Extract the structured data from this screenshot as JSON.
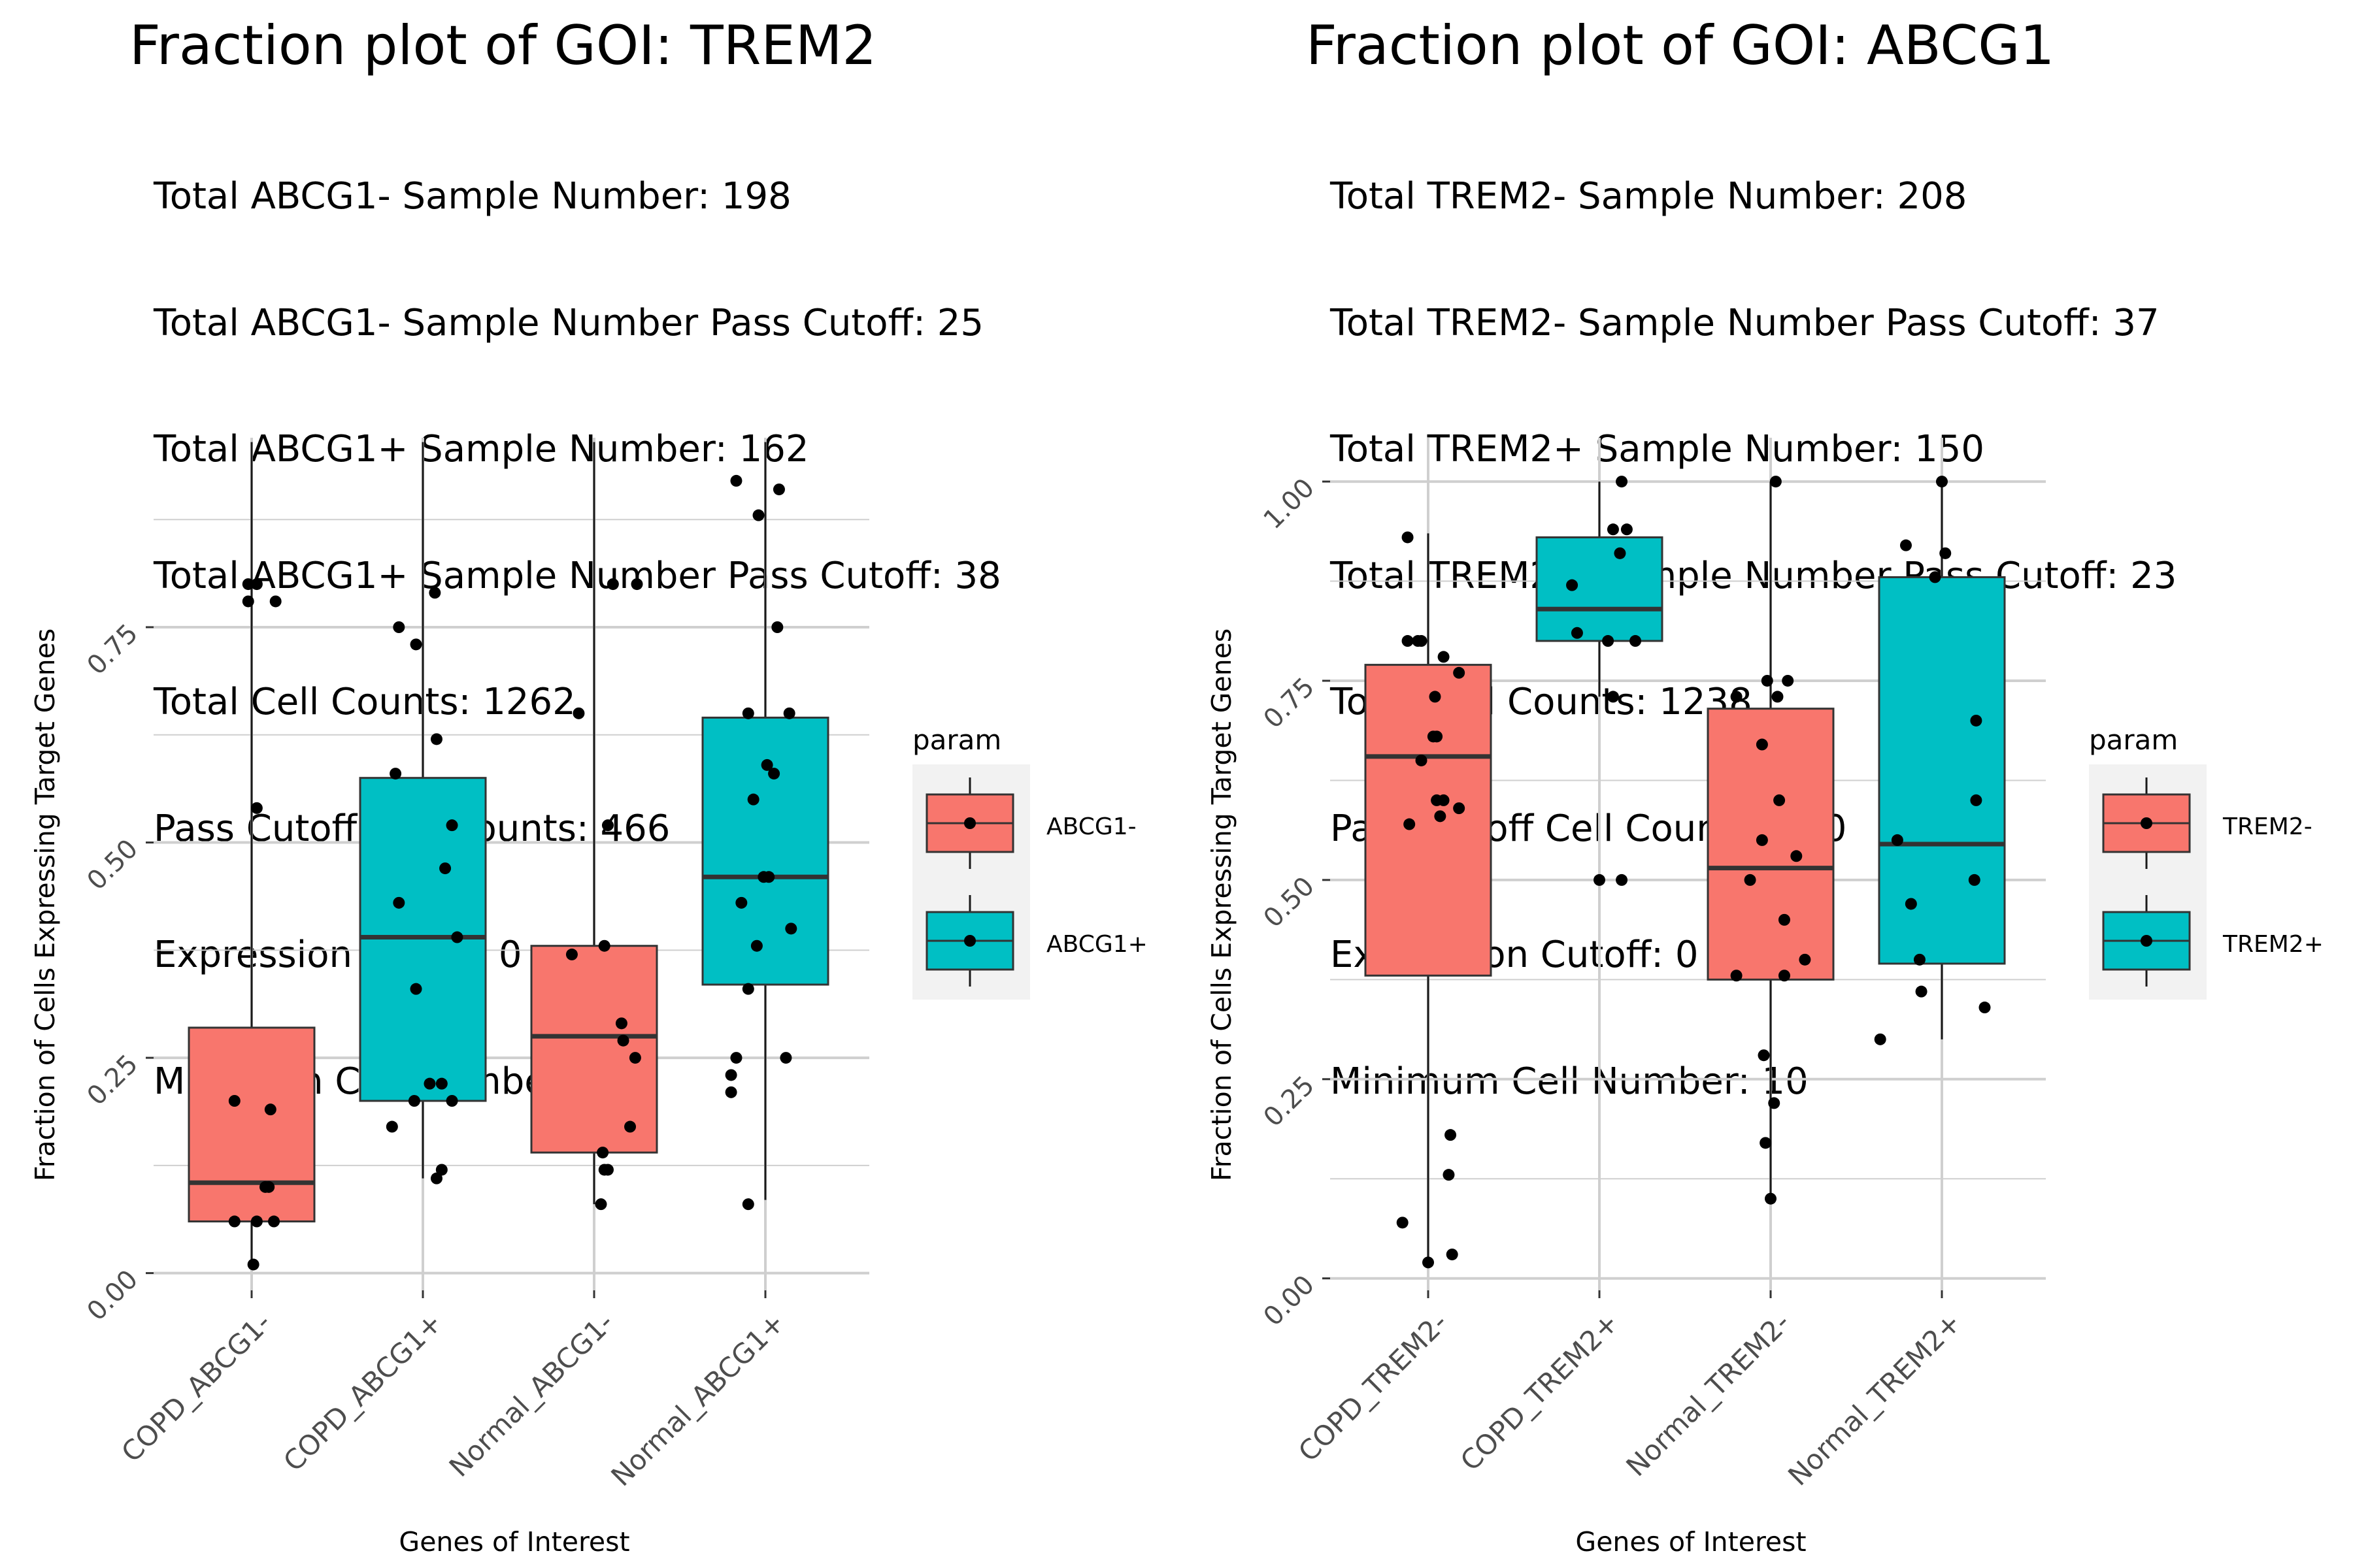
{
  "panels": [
    {
      "title": "Fraction plot of GOI: TREM2",
      "subtitle_lines": [
        "Total ABCG1- Sample Number: 198",
        "Total ABCG1- Sample Number Pass Cutoff: 25",
        "Total ABCG1+ Sample Number: 162",
        "Total ABCG1+ Sample Number Pass Cutoff: 38",
        "Total Cell Counts: 1262",
        "Pass Cutoff Cell Counts: 466",
        "Expression Cutoff: 0",
        "Minimum Cell Number: 10"
      ],
      "legend": {
        "title": "param",
        "entries": [
          "ABCG1-",
          "ABCG1+"
        ]
      }
    },
    {
      "title": "Fraction plot of GOI: ABCG1",
      "subtitle_lines": [
        "Total TREM2- Sample Number: 208",
        "Total TREM2- Sample Number Pass Cutoff: 37",
        "Total TREM2+ Sample Number: 150",
        "Total TREM2+ Sample Number Pass Cutoff: 23",
        "Total Cell Counts: 1238",
        "Pass Cutoff Cell Counts: 710",
        "Expression Cutoff: 0",
        "Minimum Cell Number: 10"
      ],
      "legend": {
        "title": "param",
        "entries": [
          "TREM2-",
          "TREM2+"
        ]
      }
    }
  ],
  "colors": {
    "negative": "#F8766D",
    "positive": "#00BFC4",
    "panel_bg": "#ffffff",
    "grid": "#cfcfcf",
    "legend_bg": "#F2F2F2"
  },
  "chart_data": [
    {
      "type": "box",
      "title": "Fraction plot of GOI: TREM2",
      "xlabel": "Genes of Interest",
      "ylabel": "Fraction of Cells Expressing Target Genes",
      "ylim": [
        -0.02,
        0.97
      ],
      "yticks": [
        0.0,
        0.25,
        0.5,
        0.75
      ],
      "ytick_labels": [
        "0.00",
        "0.25",
        "0.50",
        "0.75"
      ],
      "legend_title": "param",
      "grid": true,
      "legend_position": "right",
      "categories": [
        "COPD_ABCG1-",
        "COPD_ABCG1+",
        "Normal_ABCG1-",
        "Normal_ABCG1+"
      ],
      "series_group": [
        "ABCG1-",
        "ABCG1+",
        "ABCG1-",
        "ABCG1+"
      ],
      "boxes": [
        {
          "lower_whisker": 0.01,
          "q1": 0.06,
          "median": 0.105,
          "q3": 0.285,
          "upper_whisker": 0.965
        },
        {
          "lower_whisker": 0.11,
          "q1": 0.2,
          "median": 0.39,
          "q3": 0.575,
          "upper_whisker": 0.965
        },
        {
          "lower_whisker": 0.08,
          "q1": 0.14,
          "median": 0.275,
          "q3": 0.38,
          "upper_whisker": 0.965
        },
        {
          "lower_whisker": 0.085,
          "q1": 0.335,
          "median": 0.46,
          "q3": 0.645,
          "upper_whisker": 0.965
        }
      ],
      "points": [
        [
          [
            -0.02,
            0.8
          ],
          [
            0.03,
            0.8
          ],
          [
            -0.02,
            0.78
          ],
          [
            0.14,
            0.78
          ],
          [
            0.03,
            0.54
          ],
          [
            -0.1,
            0.2
          ],
          [
            0.11,
            0.19
          ],
          [
            0.08,
            0.1
          ],
          [
            0.1,
            0.1
          ],
          [
            -0.1,
            0.06
          ],
          [
            0.03,
            0.06
          ],
          [
            0.13,
            0.06
          ],
          [
            0.01,
            0.01
          ]
        ],
        [
          [
            0.07,
            0.79
          ],
          [
            -0.14,
            0.75
          ],
          [
            -0.04,
            0.73
          ],
          [
            0.08,
            0.62
          ],
          [
            -0.16,
            0.58
          ],
          [
            0.17,
            0.52
          ],
          [
            -0.14,
            0.43
          ],
          [
            0.13,
            0.47
          ],
          [
            0.2,
            0.39
          ],
          [
            -0.04,
            0.33
          ],
          [
            0.04,
            0.22
          ],
          [
            0.11,
            0.22
          ],
          [
            -0.05,
            0.2
          ],
          [
            0.17,
            0.2
          ],
          [
            -0.18,
            0.17
          ],
          [
            0.08,
            0.11
          ],
          [
            0.11,
            0.12
          ]
        ],
        [
          [
            0.11,
            0.8
          ],
          [
            0.25,
            0.8
          ],
          [
            -0.09,
            0.65
          ],
          [
            0.08,
            0.52
          ],
          [
            -0.13,
            0.37
          ],
          [
            0.06,
            0.38
          ],
          [
            0.16,
            0.29
          ],
          [
            0.17,
            0.27
          ],
          [
            0.24,
            0.25
          ],
          [
            0.21,
            0.17
          ],
          [
            0.05,
            0.14
          ],
          [
            0.06,
            0.12
          ],
          [
            0.08,
            0.12
          ],
          [
            0.04,
            0.08
          ]
        ],
        [
          [
            -0.17,
            0.92
          ],
          [
            0.08,
            0.91
          ],
          [
            -0.04,
            0.88
          ],
          [
            0.07,
            0.75
          ],
          [
            -0.1,
            0.65
          ],
          [
            0.14,
            0.65
          ],
          [
            0.01,
            0.59
          ],
          [
            0.05,
            0.58
          ],
          [
            -0.07,
            0.55
          ],
          [
            -0.14,
            0.43
          ],
          [
            -0.01,
            0.46
          ],
          [
            0.02,
            0.46
          ],
          [
            0.15,
            0.4
          ],
          [
            -0.05,
            0.38
          ],
          [
            -0.1,
            0.33
          ],
          [
            0.12,
            0.25
          ],
          [
            -0.17,
            0.25
          ],
          [
            -0.2,
            0.23
          ],
          [
            -0.2,
            0.21
          ],
          [
            -0.1,
            0.08
          ]
        ]
      ]
    },
    {
      "type": "box",
      "title": "Fraction plot of GOI: ABCG1",
      "xlabel": "Genes of Interest",
      "ylabel": "Fraction of Cells Expressing Target Genes",
      "ylim": [
        -0.015,
        1.055
      ],
      "yticks": [
        0.0,
        0.25,
        0.5,
        0.75,
        1.0
      ],
      "ytick_labels": [
        "0.00",
        "0.25",
        "0.50",
        "0.75",
        "1.00"
      ],
      "legend_title": "param",
      "grid": true,
      "legend_position": "right",
      "categories": [
        "COPD_TREM2-",
        "COPD_TREM2+",
        "Normal_TREM2-",
        "Normal_TREM2+"
      ],
      "series_group": [
        "TREM2-",
        "TREM2+",
        "TREM2-",
        "TREM2+"
      ],
      "boxes": [
        {
          "lower_whisker": 0.02,
          "q1": 0.38,
          "median": 0.655,
          "q3": 0.77,
          "upper_whisker": 0.935
        },
        {
          "lower_whisker": 0.73,
          "q1": 0.8,
          "median": 0.84,
          "q3": 0.93,
          "upper_whisker": 1.0
        },
        {
          "lower_whisker": 0.1,
          "q1": 0.375,
          "median": 0.515,
          "q3": 0.715,
          "upper_whisker": 1.0
        },
        {
          "lower_whisker": 0.3,
          "q1": 0.395,
          "median": 0.545,
          "q3": 0.88,
          "upper_whisker": 1.0
        }
      ],
      "points": [
        [
          [
            -0.12,
            0.93
          ],
          [
            -0.12,
            0.8
          ],
          [
            -0.06,
            0.8
          ],
          [
            -0.04,
            0.8
          ],
          [
            0.09,
            0.78
          ],
          [
            0.18,
            0.76
          ],
          [
            0.04,
            0.73
          ],
          [
            0.03,
            0.68
          ],
          [
            0.05,
            0.68
          ],
          [
            -0.04,
            0.65
          ],
          [
            0.09,
            0.6
          ],
          [
            0.05,
            0.6
          ],
          [
            0.18,
            0.59
          ],
          [
            0.07,
            0.58
          ],
          [
            -0.11,
            0.57
          ],
          [
            0.13,
            0.18
          ],
          [
            0.12,
            0.13
          ],
          [
            -0.15,
            0.07
          ],
          [
            0.14,
            0.03
          ],
          [
            0.0,
            0.02
          ]
        ],
        [
          [
            0.13,
            1.0
          ],
          [
            0.08,
            0.94
          ],
          [
            0.16,
            0.94
          ],
          [
            0.12,
            0.91
          ],
          [
            -0.16,
            0.87
          ],
          [
            -0.13,
            0.81
          ],
          [
            0.05,
            0.8
          ],
          [
            0.21,
            0.8
          ],
          [
            0.08,
            0.73
          ],
          [
            0.0,
            0.5
          ],
          [
            0.13,
            0.5
          ]
        ],
        [
          [
            0.03,
            1.0
          ],
          [
            -0.02,
            0.75
          ],
          [
            0.1,
            0.75
          ],
          [
            -0.2,
            0.73
          ],
          [
            0.04,
            0.73
          ],
          [
            -0.05,
            0.67
          ],
          [
            0.05,
            0.6
          ],
          [
            -0.05,
            0.55
          ],
          [
            0.15,
            0.53
          ],
          [
            -0.12,
            0.5
          ],
          [
            0.08,
            0.45
          ],
          [
            0.2,
            0.4
          ],
          [
            -0.2,
            0.38
          ],
          [
            0.08,
            0.38
          ],
          [
            -0.04,
            0.28
          ],
          [
            0.02,
            0.22
          ],
          [
            -0.03,
            0.17
          ],
          [
            0.0,
            0.1
          ]
        ],
        [
          [
            0.0,
            1.0
          ],
          [
            -0.21,
            0.92
          ],
          [
            0.02,
            0.91
          ],
          [
            -0.04,
            0.88
          ],
          [
            0.2,
            0.7
          ],
          [
            0.2,
            0.6
          ],
          [
            -0.26,
            0.55
          ],
          [
            0.19,
            0.5
          ],
          [
            -0.18,
            0.47
          ],
          [
            -0.13,
            0.4
          ],
          [
            -0.12,
            0.36
          ],
          [
            0.25,
            0.34
          ],
          [
            -0.36,
            0.3
          ]
        ]
      ]
    }
  ]
}
